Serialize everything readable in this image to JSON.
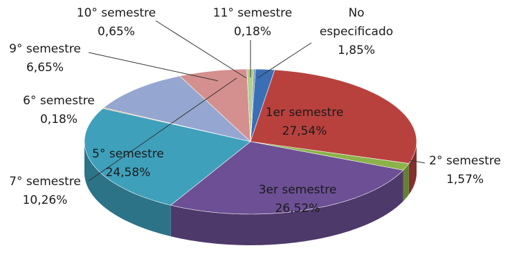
{
  "chart_data": {
    "type": "pie",
    "categories": [
      "No especificado",
      "1er semestre",
      "2° semestre",
      "3er semestre",
      "5° semestre",
      "6° semestre",
      "7° semestre",
      "9° semestre",
      "10° semestre",
      "11° semestre"
    ],
    "values": [
      1.85,
      27.54,
      1.57,
      26.52,
      24.58,
      0.18,
      10.26,
      6.65,
      0.65,
      0.18
    ],
    "value_labels": [
      "1,85%",
      "27,54%",
      "1,57%",
      "26,52%",
      "24,58%",
      "0,18%",
      "10,26%",
      "6,65%",
      "0,65%",
      "0,18%"
    ],
    "colors": [
      "#3a6fb5",
      "#b8413e",
      "#8cb24a",
      "#6c4f94",
      "#3fa0bb",
      "#e08a3a",
      "#95a7d0",
      "#d4908e",
      "#b5cf8e",
      "#6a8fc4"
    ]
  }
}
